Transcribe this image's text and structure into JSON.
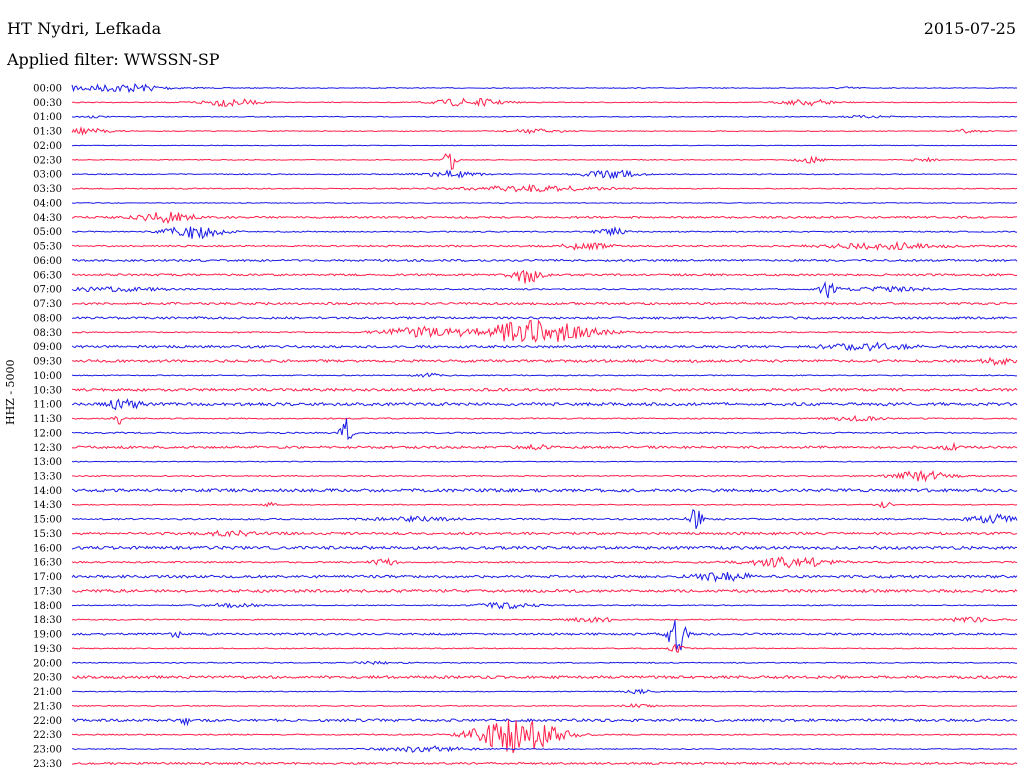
{
  "header": {
    "station": "HT Nydri, Lefkada",
    "date": "2015-07-25",
    "filter": "Applied filter: WWSSN-SP",
    "channel": "HHZ - 5000"
  },
  "colors": {
    "trace_a": "#1a1ae6",
    "trace_b": "#ff1f4a"
  },
  "chart_data": {
    "type": "line",
    "title": "HT Nydri, Lefkada",
    "subtitle": "Applied filter: WWSSN-SP",
    "ylabel": "HHZ - 5000",
    "xlabel": "",
    "grid": false,
    "rows": [
      {
        "time": "00:00",
        "color": "trace_a",
        "noise": 0.4,
        "events": [
          [
            0.02,
            3,
            0.05
          ],
          [
            0.07,
            2,
            0.02
          ],
          [
            0.82,
            1,
            0.01
          ]
        ]
      },
      {
        "time": "00:30",
        "color": "trace_b",
        "noise": 0.4,
        "events": [
          [
            0.165,
            4,
            0.02
          ],
          [
            0.42,
            4,
            0.025
          ],
          [
            0.78,
            3,
            0.02
          ]
        ]
      },
      {
        "time": "01:00",
        "color": "trace_a",
        "noise": 0.4,
        "events": [
          [
            0.02,
            1,
            0.01
          ],
          [
            0.84,
            1,
            0.02
          ]
        ]
      },
      {
        "time": "01:30",
        "color": "trace_b",
        "noise": 0.4,
        "events": [
          [
            0.01,
            3,
            0.02
          ],
          [
            0.49,
            2,
            0.02
          ],
          [
            0.95,
            2,
            0.01
          ]
        ]
      },
      {
        "time": "02:00",
        "color": "trace_a",
        "noise": 0.3,
        "events": []
      },
      {
        "time": "02:30",
        "color": "trace_b",
        "noise": 0.4,
        "events": [
          [
            0.4,
            12,
            0.004
          ],
          [
            0.78,
            3,
            0.01
          ],
          [
            0.9,
            2,
            0.01
          ]
        ]
      },
      {
        "time": "03:00",
        "color": "trace_a",
        "noise": 0.5,
        "events": [
          [
            0.4,
            3,
            0.02
          ],
          [
            0.57,
            4,
            0.02
          ]
        ]
      },
      {
        "time": "03:30",
        "color": "trace_b",
        "noise": 0.5,
        "events": [
          [
            0.49,
            3,
            0.05
          ]
        ]
      },
      {
        "time": "04:00",
        "color": "trace_a",
        "noise": 0.4,
        "events": []
      },
      {
        "time": "04:30",
        "color": "trace_b",
        "noise": 1.0,
        "events": [
          [
            0.1,
            5,
            0.02
          ]
        ]
      },
      {
        "time": "05:00",
        "color": "trace_a",
        "noise": 0.6,
        "events": [
          [
            0.13,
            7,
            0.02
          ],
          [
            0.57,
            4,
            0.01
          ]
        ]
      },
      {
        "time": "05:30",
        "color": "trace_b",
        "noise": 0.8,
        "events": [
          [
            0.54,
            3,
            0.02
          ],
          [
            0.86,
            3,
            0.04
          ]
        ]
      },
      {
        "time": "06:00",
        "color": "trace_a",
        "noise": 1.0,
        "events": []
      },
      {
        "time": "06:30",
        "color": "trace_b",
        "noise": 1.0,
        "events": [
          [
            0.48,
            9,
            0.01
          ]
        ]
      },
      {
        "time": "07:00",
        "color": "trace_a",
        "noise": 0.7,
        "events": [
          [
            0.04,
            2,
            0.04
          ],
          [
            0.8,
            8,
            0.006
          ],
          [
            0.86,
            2,
            0.03
          ]
        ]
      },
      {
        "time": "07:30",
        "color": "trace_b",
        "noise": 1.1,
        "events": []
      },
      {
        "time": "08:00",
        "color": "trace_a",
        "noise": 1.1,
        "events": []
      },
      {
        "time": "08:30",
        "color": "trace_b",
        "noise": 0.6,
        "events": [
          [
            0.37,
            5,
            0.03
          ],
          [
            0.49,
            12,
            0.04
          ]
        ]
      },
      {
        "time": "09:00",
        "color": "trace_a",
        "noise": 1.2,
        "events": [
          [
            0.84,
            3,
            0.03
          ]
        ]
      },
      {
        "time": "09:30",
        "color": "trace_b",
        "noise": 1.3,
        "events": [
          [
            0.98,
            3,
            0.01
          ]
        ]
      },
      {
        "time": "10:00",
        "color": "trace_a",
        "noise": 0.5,
        "events": [
          [
            0.38,
            2,
            0.01
          ]
        ]
      },
      {
        "time": "10:30",
        "color": "trace_b",
        "noise": 1.3,
        "events": []
      },
      {
        "time": "11:00",
        "color": "trace_a",
        "noise": 1.5,
        "events": [
          [
            0.055,
            7,
            0.01
          ]
        ]
      },
      {
        "time": "11:30",
        "color": "trace_b",
        "noise": 0.6,
        "events": [
          [
            0.05,
            5,
            0.004
          ],
          [
            0.83,
            2,
            0.02
          ]
        ]
      },
      {
        "time": "12:00",
        "color": "trace_a",
        "noise": 0.7,
        "events": [
          [
            0.29,
            14,
            0.004
          ]
        ]
      },
      {
        "time": "12:30",
        "color": "trace_b",
        "noise": 1.2,
        "events": [
          [
            0.49,
            2,
            0.01
          ],
          [
            0.93,
            3,
            0.005
          ]
        ]
      },
      {
        "time": "13:00",
        "color": "trace_a",
        "noise": 0.4,
        "events": []
      },
      {
        "time": "13:30",
        "color": "trace_b",
        "noise": 0.6,
        "events": [
          [
            0.9,
            5,
            0.02
          ]
        ]
      },
      {
        "time": "14:00",
        "color": "trace_a",
        "noise": 1.5,
        "events": []
      },
      {
        "time": "14:30",
        "color": "trace_b",
        "noise": 0.5,
        "events": [
          [
            0.21,
            2,
            0.005
          ],
          [
            0.86,
            3,
            0.005
          ]
        ]
      },
      {
        "time": "15:00",
        "color": "trace_a",
        "noise": 0.8,
        "events": [
          [
            0.36,
            2,
            0.03
          ],
          [
            0.66,
            10,
            0.005
          ],
          [
            0.98,
            4,
            0.02
          ]
        ]
      },
      {
        "time": "15:30",
        "color": "trace_b",
        "noise": 1.2,
        "events": [
          [
            0.17,
            2,
            0.02
          ]
        ]
      },
      {
        "time": "16:00",
        "color": "trace_a",
        "noise": 1.5,
        "events": []
      },
      {
        "time": "16:30",
        "color": "trace_b",
        "noise": 0.8,
        "events": [
          [
            0.33,
            3,
            0.01
          ],
          [
            0.76,
            5,
            0.03
          ]
        ]
      },
      {
        "time": "17:00",
        "color": "trace_a",
        "noise": 1.3,
        "events": [
          [
            0.69,
            4,
            0.02
          ]
        ]
      },
      {
        "time": "17:30",
        "color": "trace_b",
        "noise": 1.4,
        "events": []
      },
      {
        "time": "18:00",
        "color": "trace_a",
        "noise": 0.5,
        "events": [
          [
            0.17,
            2,
            0.02
          ],
          [
            0.46,
            3,
            0.02
          ]
        ]
      },
      {
        "time": "18:30",
        "color": "trace_b",
        "noise": 0.6,
        "events": [
          [
            0.55,
            2,
            0.02
          ],
          [
            0.95,
            2,
            0.02
          ]
        ]
      },
      {
        "time": "19:00",
        "color": "trace_a",
        "noise": 1.0,
        "events": [
          [
            0.11,
            4,
            0.003
          ],
          [
            0.64,
            20,
            0.006
          ]
        ]
      },
      {
        "time": "19:30",
        "color": "trace_b",
        "noise": 0.5,
        "events": [
          [
            0.64,
            6,
            0.005
          ]
        ]
      },
      {
        "time": "20:00",
        "color": "trace_a",
        "noise": 0.5,
        "events": [
          [
            0.32,
            1,
            0.02
          ]
        ]
      },
      {
        "time": "20:30",
        "color": "trace_b",
        "noise": 1.4,
        "events": []
      },
      {
        "time": "21:00",
        "color": "trace_a",
        "noise": 0.4,
        "events": [
          [
            0.6,
            2,
            0.01
          ]
        ]
      },
      {
        "time": "21:30",
        "color": "trace_b",
        "noise": 0.5,
        "events": [
          [
            0.6,
            2,
            0.01
          ]
        ]
      },
      {
        "time": "22:00",
        "color": "trace_a",
        "noise": 1.3,
        "events": [
          [
            0.12,
            4,
            0.003
          ]
        ]
      },
      {
        "time": "22:30",
        "color": "trace_b",
        "noise": 0.6,
        "events": [
          [
            0.47,
            18,
            0.03
          ]
        ]
      },
      {
        "time": "23:00",
        "color": "trace_a",
        "noise": 0.5,
        "events": [
          [
            0.37,
            3,
            0.03
          ]
        ]
      },
      {
        "time": "23:30",
        "color": "trace_b",
        "noise": 1.0,
        "events": []
      }
    ]
  }
}
